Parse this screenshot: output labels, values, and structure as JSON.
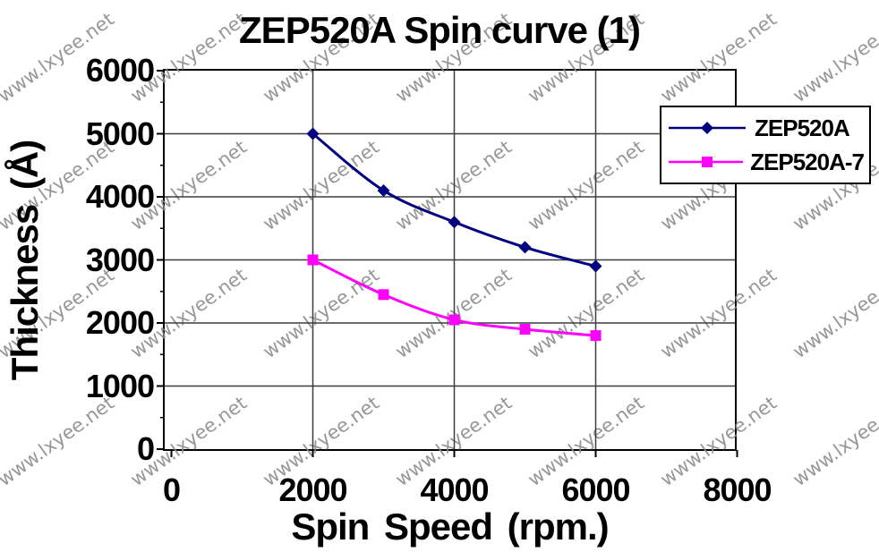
{
  "watermark": {
    "text": "www.lxyee.net",
    "color": "#8c8c8c",
    "cols": 7,
    "rows": 4
  },
  "chart_data": {
    "type": "line",
    "title": "ZEP520A Spin curve (1)",
    "xlabel": "Spin Speed (rpm.)",
    "ylabel": "Thickness (Å)",
    "x": [
      2000,
      3000,
      4000,
      5000,
      6000
    ],
    "series": [
      {
        "name": "ZEP520A",
        "color": "#000080",
        "marker": "diamond",
        "values": [
          5000,
          4100,
          3600,
          3200,
          2900
        ]
      },
      {
        "name": "ZEP520A-7",
        "color": "#ff00ff",
        "marker": "square",
        "values": [
          3000,
          2450,
          2050,
          1900,
          1800
        ]
      }
    ],
    "xlim": [
      0,
      8000
    ],
    "ylim": [
      0,
      6000
    ],
    "x_ticks": [
      0,
      2000,
      4000,
      6000,
      8000
    ],
    "y_ticks": [
      0,
      1000,
      2000,
      3000,
      4000,
      5000,
      6000
    ],
    "grid": true,
    "smoothed_lines": true,
    "legend_position": "top-right",
    "plot_bg": "#c0c0c0",
    "grid_color": "#3d3d3d",
    "axis_color": "#000000"
  }
}
